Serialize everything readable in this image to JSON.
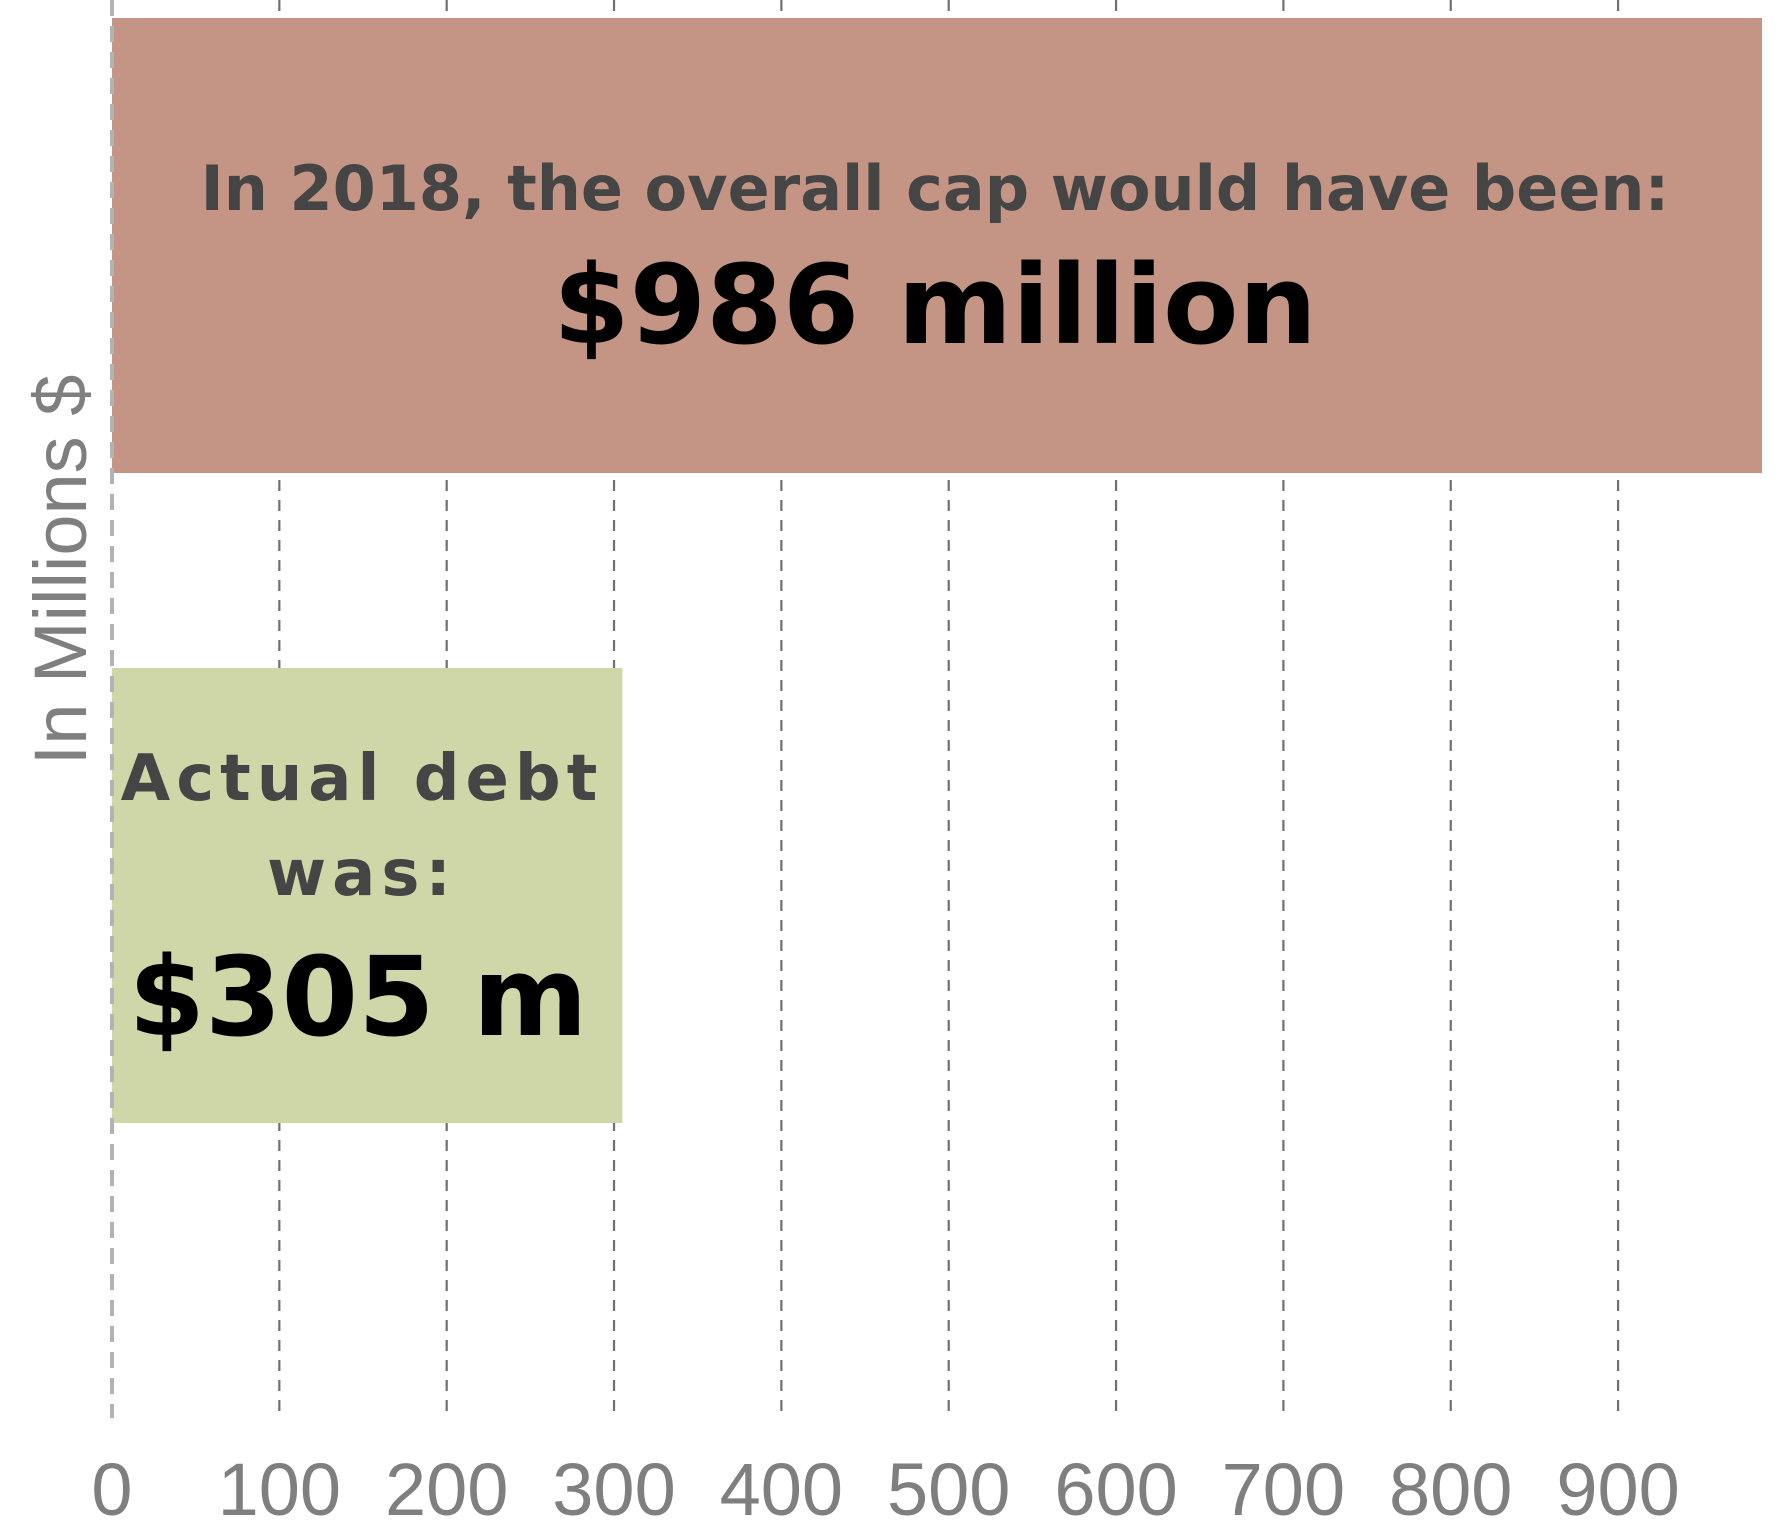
{
  "chart_data": {
    "type": "bar",
    "orientation": "horizontal",
    "categories": [
      "overall cap",
      "actual debt"
    ],
    "values": [
      986,
      305
    ],
    "colors": [
      "#c49584",
      "#cfd6a8"
    ],
    "ylabel": "In Millions $",
    "xlim": [
      0,
      986
    ],
    "xticks": [
      0,
      100,
      200,
      300,
      400,
      500,
      600,
      700,
      800,
      900
    ],
    "grid": true,
    "annotations": [
      {
        "text": "In 2018, the overall cap would have been:",
        "value": "$986 million"
      },
      {
        "text_lines": [
          "Actual debt",
          "was:"
        ],
        "value": "$305 m"
      }
    ]
  }
}
